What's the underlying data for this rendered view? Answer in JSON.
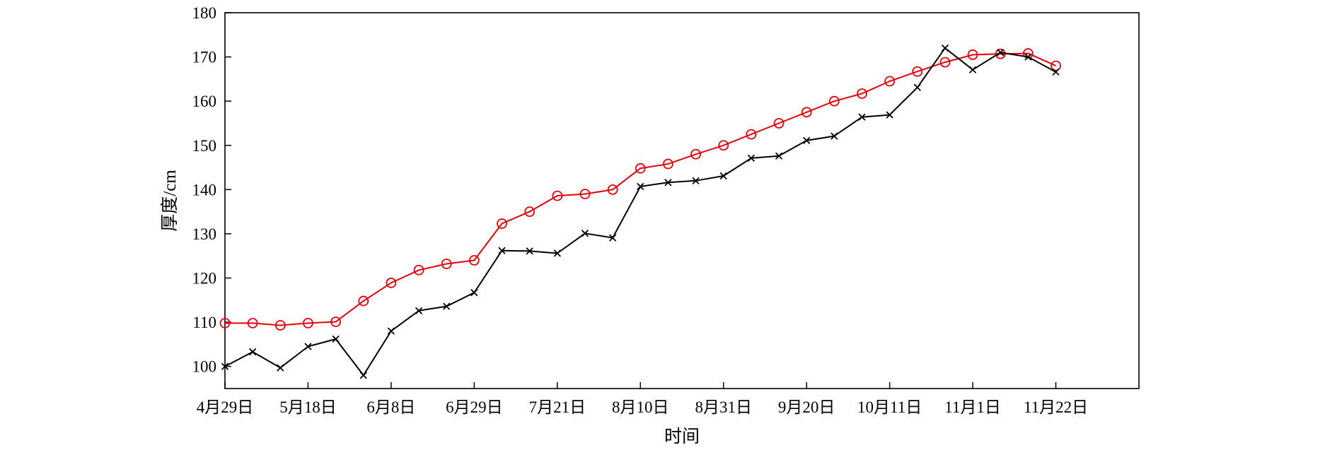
{
  "chart_data": {
    "type": "line",
    "title": "",
    "xlabel": "时间",
    "ylabel": "厚度/cm",
    "ylim": [
      95,
      180
    ],
    "xlim": [
      0,
      33
    ],
    "yticks": [
      100,
      110,
      120,
      130,
      140,
      150,
      160,
      170,
      180
    ],
    "xticks": [
      {
        "x": 0,
        "label": "4月29日"
      },
      {
        "x": 3,
        "label": "5月18日"
      },
      {
        "x": 6,
        "label": "6月8日"
      },
      {
        "x": 9,
        "label": "6月29日"
      },
      {
        "x": 12,
        "label": "7月21日"
      },
      {
        "x": 15,
        "label": "8月10日"
      },
      {
        "x": 18,
        "label": "8月31日"
      },
      {
        "x": 21,
        "label": "9月20日"
      },
      {
        "x": 24,
        "label": "10月11日"
      },
      {
        "x": 27,
        "label": "11月1日"
      },
      {
        "x": 30,
        "label": "11月22日"
      }
    ],
    "grid": false,
    "series": [
      {
        "color": "#e8000b",
        "marker": "circle",
        "x": [
          0,
          1,
          2,
          3,
          4,
          5,
          6,
          7,
          8,
          9,
          10,
          11,
          12,
          13,
          14,
          15,
          16,
          17,
          18,
          19,
          20,
          21,
          22,
          23,
          24,
          25,
          26,
          27,
          28,
          29,
          30
        ],
        "values": [
          109.8,
          109.8,
          109.3,
          109.8,
          110.1,
          114.8,
          118.9,
          121.8,
          123.2,
          124.0,
          132.3,
          135.0,
          138.6,
          139.0,
          140.0,
          144.8,
          145.8,
          148.0,
          150.0,
          152.5,
          155.0,
          157.5,
          160.0,
          161.7,
          164.5,
          166.7,
          168.8,
          170.5,
          170.7,
          170.8,
          168.0
        ]
      },
      {
        "color": "#000000",
        "marker": "x",
        "x": [
          0,
          1,
          2,
          3,
          4,
          5,
          6,
          7,
          8,
          9,
          10,
          11,
          12,
          13,
          14,
          15,
          16,
          17,
          18,
          19,
          20,
          21,
          22,
          23,
          24,
          25,
          26,
          27,
          28,
          29,
          30
        ],
        "values": [
          100.0,
          103.3,
          99.7,
          104.5,
          106.2,
          98.0,
          108.0,
          112.6,
          113.6,
          116.7,
          126.2,
          126.1,
          125.6,
          130.1,
          129.1,
          140.7,
          141.6,
          142.0,
          143.1,
          147.1,
          147.6,
          151.1,
          152.1,
          156.4,
          156.9,
          163.1,
          172.0,
          167.1,
          171.0,
          170.0,
          166.6
        ]
      }
    ]
  }
}
